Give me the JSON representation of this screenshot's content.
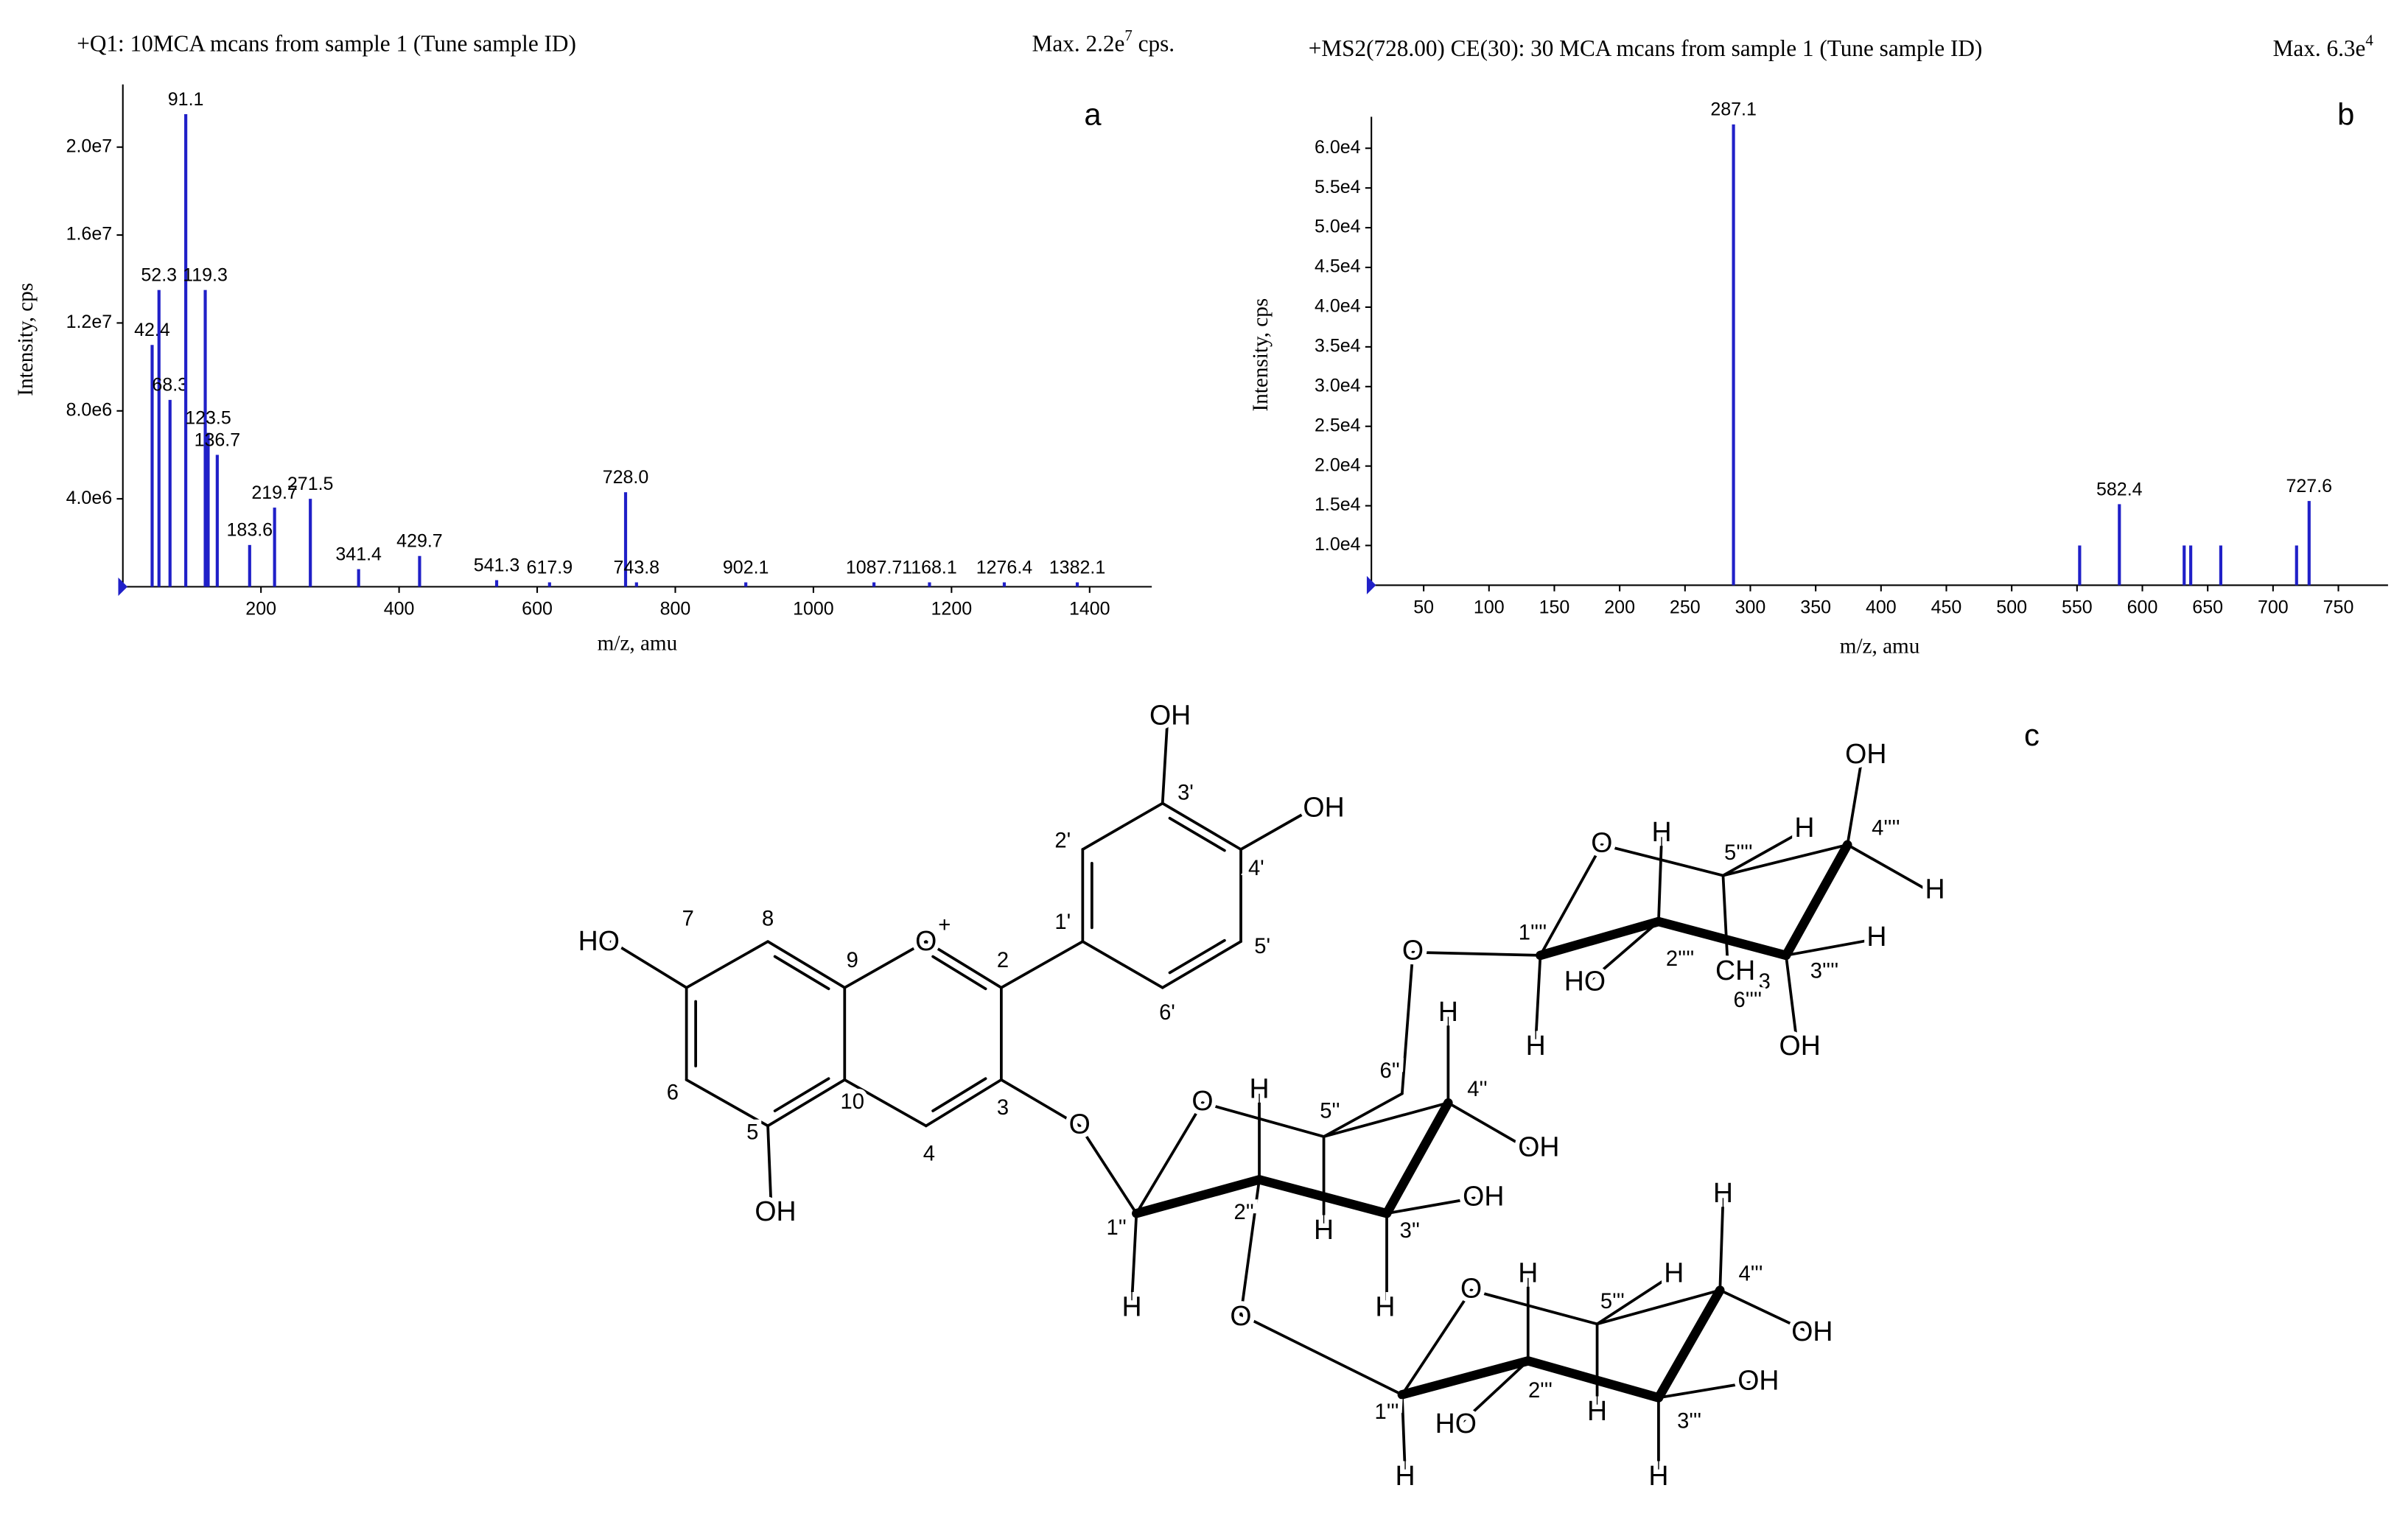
{
  "chart_data": [
    {
      "type": "bar",
      "title": "+Q1: 10MCA mcans from sample 1 (Tune sample ID)",
      "max_text": {
        "text": "Max. 2.2e",
        "sup": "7",
        "after": " cps."
      },
      "panel": "a",
      "xlabel": "m/z, amu",
      "ylabel": "Intensity, cps",
      "color": "#2020c8",
      "xlim": [
        0,
        1490
      ],
      "xticks": [
        200,
        400,
        600,
        800,
        1000,
        1200,
        1400
      ],
      "ylim": [
        0,
        22500000
      ],
      "yticks": [
        {
          "value": 4000000,
          "label": "4.0e6"
        },
        {
          "value": 8000000,
          "label": "8.0e6"
        },
        {
          "value": 12000000,
          "label": "1.2e7"
        },
        {
          "value": 16000000,
          "label": "1.6e7"
        },
        {
          "value": 20000000,
          "label": "2.0e7"
        }
      ],
      "series": [
        {
          "x": [
            42.4,
            52.3,
            68.3,
            91.1,
            119.3,
            123.5,
            136.7,
            183.6,
            219.7,
            271.5,
            341.4,
            429.7,
            541.3,
            617.9,
            728.0,
            743.8,
            902.1,
            1087.7,
            1168.1,
            1276.4,
            1382.1
          ],
          "x_labels": [
            "42.4",
            "52.3",
            "68.3",
            "91.1",
            "119.3",
            "123.5",
            "136.7",
            "183.6",
            "219.7",
            "271.5",
            "341.4",
            "429.7",
            "541.3",
            "617.9",
            "728.0",
            "743.8",
            "902.1",
            "1087.7",
            "1168.1",
            "1276.4",
            "1382.1"
          ],
          "values": [
            11000000,
            13500000,
            8500000,
            21500000,
            13500000,
            7000000,
            6000000,
            1900000,
            3600000,
            4000000,
            800000,
            1400000,
            300000,
            200000,
            4300000,
            200000,
            200000,
            200000,
            200000,
            200000,
            200000
          ]
        }
      ]
    },
    {
      "type": "bar",
      "title": "+MS2(728.00) CE(30): 30 MCA mcans from sample 1 (Tune sample ID)",
      "max_text": {
        "text": "Max. 6.3e",
        "sup": "4",
        "after": ""
      },
      "panel": "b",
      "xlabel": "m/z, amu",
      "ylabel": "Intensity, cps",
      "color": "#2020c8",
      "xlim": [
        10,
        788
      ],
      "xticks": [
        50,
        100,
        150,
        200,
        250,
        300,
        350,
        400,
        450,
        500,
        550,
        600,
        650,
        700,
        750
      ],
      "ylim": [
        5000,
        63000
      ],
      "yticks": [
        {
          "value": 10000,
          "label": "1.0e4"
        },
        {
          "value": 15000,
          "label": "1.5e4"
        },
        {
          "value": 20000,
          "label": "2.0e4"
        },
        {
          "value": 25000,
          "label": "2.5e4"
        },
        {
          "value": 30000,
          "label": "3.0e4"
        },
        {
          "value": 35000,
          "label": "3.5e4"
        },
        {
          "value": 40000,
          "label": "4.0e4"
        },
        {
          "value": 45000,
          "label": "4.5e4"
        },
        {
          "value": 50000,
          "label": "5.0e4"
        },
        {
          "value": 55000,
          "label": "5.5e4"
        },
        {
          "value": 60000,
          "label": "6.0e4"
        }
      ],
      "series": [
        {
          "x": [
            287.1,
            582.4,
            727.6
          ],
          "x_labels": [
            "287.1",
            "582.4",
            "727.6"
          ],
          "values": [
            63000,
            15200,
            15600
          ]
        },
        {
          "x": [
            552,
            632,
            637,
            660,
            718
          ],
          "values": [
            10000,
            10000,
            10000,
            10000,
            10000
          ]
        }
      ]
    }
  ],
  "structure": {
    "panel": "c",
    "labels": [
      "HO",
      "7",
      "8",
      "9",
      "O",
      "+",
      "2",
      "1'",
      "2'",
      "3'",
      "OH",
      "OH",
      "4'",
      "5'",
      "6'",
      "3",
      "4",
      "10",
      "5",
      "6",
      "OH",
      "O",
      "O",
      "H",
      "5''",
      "6''",
      "4''",
      "H",
      "OH",
      "OH",
      "3''",
      "H",
      "H",
      "2''",
      "1''",
      "H",
      "O",
      "O",
      "O",
      "H",
      "5''''",
      "H",
      "4''''",
      "OH",
      "H",
      "H",
      "3''''",
      "OH",
      "CH",
      "3",
      "6''''",
      "2''''",
      "HO",
      "1''''",
      "H",
      "O",
      "H",
      "5'''",
      "H",
      "4'''",
      "H",
      "OH",
      "OH",
      "3'''",
      "H",
      "H",
      "2'''",
      "HO",
      "1'''",
      "H"
    ]
  }
}
